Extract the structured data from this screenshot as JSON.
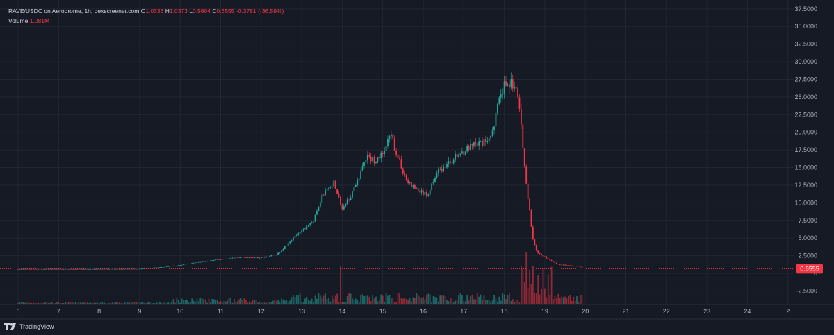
{
  "header": {
    "pair_title": "RAVE/USDC on Aerodrome, 1h, dexscreener.com",
    "ohlc": [
      {
        "label": "O",
        "value": "1.0336"
      },
      {
        "label": "H",
        "value": "1.0373"
      },
      {
        "label": "L",
        "value": "0.5604"
      },
      {
        "label": "C",
        "value": "0.6555"
      }
    ],
    "change": "-0.3781 (-36.59%)",
    "volume_label": "Volume",
    "volume_value": "1.081M"
  },
  "footer": {
    "brand": "TradingView"
  },
  "colors": {
    "background": "#161a25",
    "up": "#26a69a",
    "down": "#f23645",
    "grid": "#222633",
    "text": "#d1d4dc",
    "axis_text": "#b2b5be"
  },
  "chart_data": {
    "type": "candlestick",
    "title": "RAVE/USDC on Aerodrome, 1h, dexscreener.com",
    "x_ticks": [
      "6",
      "7",
      "8",
      "9",
      "10",
      "11",
      "12",
      "13",
      "14",
      "15",
      "16",
      "17",
      "18",
      "19",
      "20",
      "21",
      "22",
      "23",
      "24",
      "2"
    ],
    "y_ticks": [
      "37.5000",
      "35.0000",
      "32.5000",
      "30.0000",
      "27.5000",
      "25.0000",
      "22.5000",
      "20.0000",
      "17.5000",
      "15.0000",
      "12.5000",
      "10.0000",
      "7.5000",
      "5.0000",
      "2.5000",
      "0",
      "-2.5000"
    ],
    "ylim": [
      -3.7,
      38.7
    ],
    "last_price": "0.6555",
    "price_path": [
      [
        6,
        0.6
      ],
      [
        8,
        0.6
      ],
      [
        9,
        0.62
      ],
      [
        9.6,
        0.9
      ],
      [
        10,
        1.2
      ],
      [
        10.5,
        1.6
      ],
      [
        11,
        2.0
      ],
      [
        11.5,
        2.3
      ],
      [
        12,
        2.2
      ],
      [
        12.4,
        2.7
      ],
      [
        12.7,
        4.5
      ],
      [
        13,
        6.0
      ],
      [
        13.3,
        7.5
      ],
      [
        13.5,
        11.0
      ],
      [
        13.8,
        13.0
      ],
      [
        14,
        9.0
      ],
      [
        14.3,
        12.0
      ],
      [
        14.6,
        16.5
      ],
      [
        14.8,
        16.0
      ],
      [
        15,
        17.0
      ],
      [
        15.2,
        19.5
      ],
      [
        15.4,
        16.0
      ],
      [
        15.6,
        13.0
      ],
      [
        15.8,
        12.0
      ],
      [
        16.1,
        11.0
      ],
      [
        16.3,
        14.0
      ],
      [
        16.6,
        15.5
      ],
      [
        16.9,
        17.0
      ],
      [
        17.2,
        18.0
      ],
      [
        17.5,
        18.5
      ],
      [
        17.7,
        20.0
      ],
      [
        17.85,
        24.0
      ],
      [
        18.0,
        26.5
      ],
      [
        18.15,
        27.0
      ],
      [
        18.3,
        26.0
      ],
      [
        18.4,
        22.0
      ],
      [
        18.5,
        15.0
      ],
      [
        18.6,
        10.0
      ],
      [
        18.7,
        5.0
      ],
      [
        18.8,
        3.0
      ],
      [
        19.0,
        2.3
      ],
      [
        19.3,
        1.3
      ],
      [
        19.6,
        1.1
      ],
      [
        19.85,
        1.0
      ],
      [
        19.95,
        0.6555
      ]
    ]
  }
}
